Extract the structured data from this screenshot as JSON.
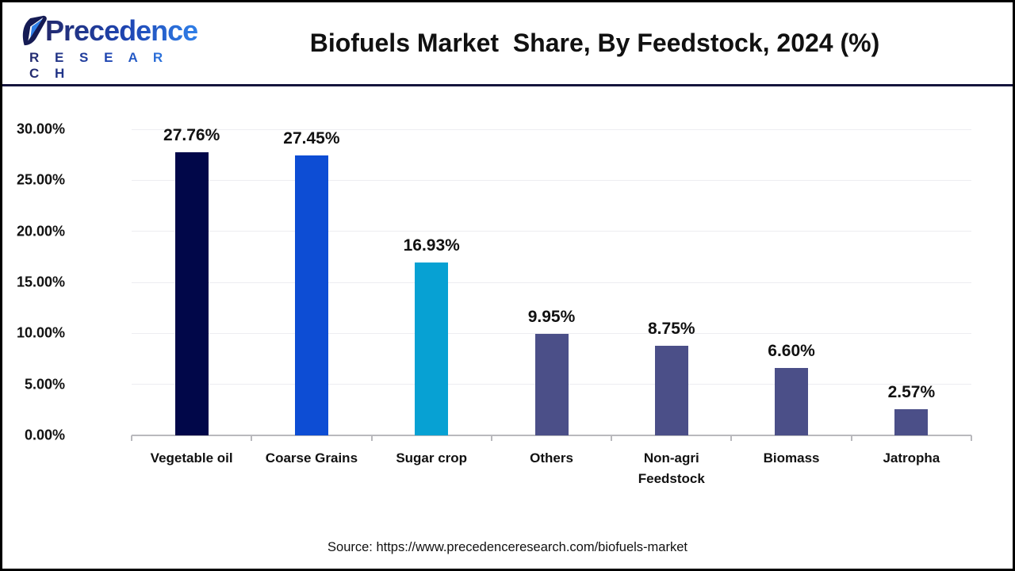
{
  "header": {
    "logo": {
      "name": "Precedence",
      "subname": "R E S E A R C H"
    },
    "title": "Biofuels Market  Share, By Feedstock, 2024 (%)"
  },
  "footer": {
    "source": "Source: https://www.precedenceresearch.com/biofuels-market"
  },
  "chart_data": {
    "type": "bar",
    "title": "Biofuels Market  Share, By Feedstock, 2024 (%)",
    "categories": [
      "Vegetable oil",
      "Coarse Grains",
      "Sugar crop",
      "Others",
      "Non-agri\nFeedstock",
      "Biomass",
      "Jatropha"
    ],
    "values": [
      27.76,
      27.45,
      16.93,
      9.95,
      8.75,
      6.6,
      2.57
    ],
    "value_labels": [
      "27.76%",
      "27.45%",
      "16.93%",
      "9.95%",
      "8.75%",
      "6.60%",
      "2.57%"
    ],
    "bar_colors": [
      "#010749",
      "#0d4dd4",
      "#07a1d3",
      "#4b4f88",
      "#4b4f88",
      "#4b4f88",
      "#4b4f88"
    ],
    "xlabel": "",
    "ylabel": "",
    "ylim": [
      0,
      30
    ],
    "ytick_step": 5,
    "ytick_labels": [
      "0.00%",
      "5.00%",
      "10.00%",
      "15.00%",
      "20.00%",
      "25.00%",
      "30.00%"
    ],
    "grid": true,
    "legend": "none",
    "colors": {
      "grid": "#ededf1",
      "axis": "#b9b9bd",
      "text": "#111111"
    }
  }
}
